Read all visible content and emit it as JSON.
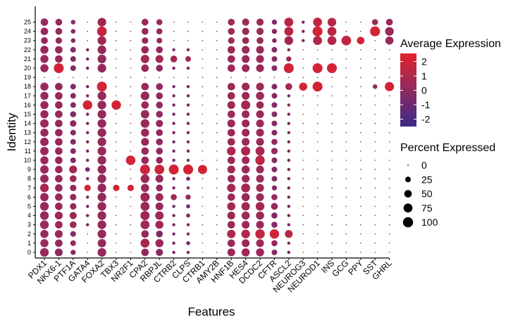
{
  "chart_data": {
    "type": "dotplot",
    "xlabel": "Features",
    "ylabel": "Identity",
    "features": [
      "PDX1",
      "NKX6-1",
      "PTF1A",
      "GATA4",
      "FOXA2",
      "TBX3",
      "NR2F1",
      "CPA2",
      "RBPJL",
      "CTRB2",
      "CLPS",
      "CTRB1",
      "AMY2B",
      "HNF1B",
      "HES4",
      "DCDC2",
      "CFTR",
      "ASCL2",
      "NEUROG3",
      "NEUROD1",
      "INS",
      "GCG",
      "PPY",
      "SST",
      "GHRL"
    ],
    "identities": [
      "0",
      "1",
      "2",
      "3",
      "4",
      "5",
      "6",
      "7",
      "8",
      "9",
      "10",
      "11",
      "12",
      "13",
      "14",
      "15",
      "16",
      "17",
      "18",
      "19",
      "20",
      "21",
      "22",
      "23",
      "24",
      "25"
    ],
    "color_legend": {
      "title": "Average Expression",
      "ticks": [
        "2",
        "1",
        "0",
        "-1",
        "-2"
      ],
      "range": [
        -2.5,
        2.5
      ],
      "low_color": "#3b2a86",
      "high_color": "#e3222c"
    },
    "size_legend": {
      "title": "Percent Expressed",
      "ticks": [
        "0",
        "25",
        "50",
        "75",
        "100"
      ]
    },
    "expression_rows": [
      [
        0.2,
        0.0,
        -0.3,
        -0.6,
        0.2,
        -0.6,
        -0.6,
        0.0,
        -0.2,
        -0.6,
        -0.6,
        -0.6,
        -0.6,
        0.4,
        0.4,
        0.4,
        -0.3,
        -0.6,
        -0.6,
        -0.6,
        -0.6,
        -0.6,
        -0.6,
        -0.6,
        -0.6
      ],
      [
        0.3,
        0.2,
        0.2,
        -0.6,
        0.3,
        -0.6,
        -0.6,
        0.7,
        0.4,
        -0.6,
        -0.6,
        -0.6,
        -0.6,
        0.4,
        0.4,
        0.4,
        0.2,
        -0.6,
        -0.6,
        -0.6,
        -0.6,
        -0.6,
        -0.6,
        -0.6,
        -0.6
      ],
      [
        0.2,
        0.3,
        -0.3,
        -0.6,
        0.2,
        -0.6,
        -0.6,
        0.2,
        -0.4,
        -0.6,
        -0.6,
        -0.6,
        -0.6,
        1.0,
        1.0,
        1.5,
        2.0,
        1.2,
        -0.6,
        -0.6,
        -0.6,
        -0.6,
        -0.6,
        -0.6,
        -0.6
      ],
      [
        0.3,
        0.4,
        0.5,
        -0.6,
        0.2,
        -0.6,
        -0.6,
        0.5,
        0.5,
        -0.6,
        -0.6,
        -0.6,
        -0.6,
        0.4,
        0.4,
        0.4,
        -0.3,
        -0.6,
        -0.6,
        -0.6,
        -0.6,
        -0.6,
        -0.6,
        -0.6,
        -0.6
      ],
      [
        0.3,
        0.4,
        0.5,
        -0.6,
        0.2,
        -0.6,
        -0.6,
        0.5,
        0.5,
        -0.6,
        -0.6,
        -0.6,
        -0.6,
        0.4,
        0.4,
        0.4,
        -0.3,
        -0.6,
        -0.6,
        -0.6,
        -0.6,
        -0.6,
        -0.6,
        -0.6,
        -0.6
      ],
      [
        0.3,
        0.3,
        0.2,
        -0.6,
        0.2,
        -0.6,
        -0.6,
        0.4,
        0.3,
        -0.6,
        -0.6,
        -0.6,
        -0.6,
        0.6,
        0.6,
        0.6,
        0.3,
        -0.6,
        -0.6,
        -0.6,
        -0.6,
        -0.6,
        -0.6,
        -0.6,
        -0.6
      ],
      [
        0.3,
        0.3,
        0.2,
        -0.6,
        0.2,
        -0.6,
        -0.6,
        0.5,
        0.5,
        0.4,
        0.2,
        -0.6,
        -0.6,
        0.4,
        0.4,
        0.4,
        0.2,
        -0.6,
        -0.6,
        -0.6,
        -0.6,
        -0.6,
        -0.6,
        -0.6,
        -0.6
      ],
      [
        0.7,
        0.3,
        0.3,
        2.0,
        0.2,
        2.0,
        2.0,
        0.3,
        0.2,
        -0.6,
        -0.6,
        -0.6,
        -0.6,
        0.7,
        0.7,
        0.5,
        -0.3,
        -0.6,
        -0.6,
        -0.6,
        -0.6,
        -0.6,
        -0.6,
        -0.6,
        -0.6
      ],
      [
        0.3,
        0.3,
        0.4,
        -0.6,
        0.2,
        -0.6,
        -0.6,
        0.4,
        0.3,
        -0.6,
        -0.6,
        -0.6,
        -0.6,
        0.4,
        0.4,
        0.4,
        -0.3,
        -0.6,
        -0.6,
        -0.6,
        -0.6,
        -0.6,
        -0.6,
        -0.6,
        -0.6
      ],
      [
        0.4,
        0.4,
        0.8,
        -0.6,
        0.2,
        -0.6,
        -0.6,
        1.8,
        1.8,
        2.0,
        2.0,
        2.0,
        -0.6,
        0.4,
        0.4,
        0.4,
        -0.3,
        -0.6,
        -0.6,
        -0.6,
        -0.6,
        -0.6,
        -0.6,
        -0.6,
        -0.6
      ],
      [
        0.3,
        0.3,
        -0.3,
        -0.6,
        0.2,
        -0.6,
        2.0,
        0.3,
        0.2,
        -0.6,
        -0.6,
        -0.6,
        -0.6,
        0.4,
        0.4,
        1.3,
        -0.3,
        -0.6,
        -0.6,
        -0.6,
        -0.6,
        -0.6,
        -0.6,
        -0.6,
        -0.6
      ],
      [
        0.3,
        0.3,
        -0.3,
        -0.6,
        0.2,
        -0.6,
        -0.6,
        0.3,
        0.2,
        -0.6,
        -0.6,
        -0.6,
        -0.6,
        0.9,
        0.9,
        0.9,
        0.2,
        -0.6,
        -0.6,
        -0.6,
        -0.6,
        -0.6,
        -0.6,
        -0.6,
        -0.6
      ],
      [
        0.3,
        0.3,
        -0.3,
        -0.6,
        0.2,
        -0.6,
        -0.6,
        0.3,
        0.2,
        -0.6,
        -0.6,
        -0.6,
        -0.6,
        0.4,
        0.4,
        0.4,
        0.2,
        -0.6,
        -0.6,
        -0.6,
        -0.6,
        -0.6,
        -0.6,
        -0.6,
        -0.6
      ],
      [
        0.3,
        0.3,
        -0.3,
        -0.6,
        0.2,
        -0.6,
        -0.6,
        0.3,
        0.2,
        -0.6,
        -0.6,
        -0.6,
        -0.6,
        0.4,
        0.4,
        0.4,
        -0.3,
        -0.6,
        -0.6,
        -0.6,
        -0.6,
        -0.6,
        -0.6,
        -0.6,
        -0.6
      ],
      [
        0.3,
        0.3,
        0.2,
        -0.6,
        0.2,
        -0.6,
        -0.6,
        0.3,
        0.2,
        -0.6,
        -0.6,
        -0.6,
        -0.6,
        0.4,
        0.4,
        0.4,
        -0.3,
        -0.6,
        -0.6,
        -0.6,
        -0.6,
        -0.6,
        -0.6,
        -0.6,
        -0.6
      ],
      [
        0.3,
        0.3,
        -0.3,
        -0.6,
        0.2,
        -0.6,
        -0.6,
        0.3,
        0.2,
        -0.6,
        -0.6,
        -0.6,
        -0.6,
        0.4,
        0.4,
        0.4,
        -0.3,
        -0.6,
        -0.6,
        -0.6,
        -0.6,
        -0.6,
        -0.6,
        -0.6,
        -0.6
      ],
      [
        0.3,
        0.3,
        -0.3,
        2.0,
        0.2,
        2.0,
        -0.6,
        0.3,
        0.2,
        -0.6,
        -0.6,
        -0.6,
        -0.6,
        0.4,
        0.7,
        0.4,
        -0.3,
        -0.6,
        -0.6,
        -0.6,
        -0.6,
        -0.6,
        -0.6,
        -0.6,
        -0.6
      ],
      [
        0.3,
        0.3,
        -0.3,
        -0.6,
        0.2,
        -0.6,
        -0.6,
        0.3,
        0.2,
        -0.6,
        -0.6,
        -0.6,
        -0.6,
        0.4,
        0.4,
        0.4,
        -0.3,
        -0.6,
        -0.6,
        -0.6,
        -0.6,
        -0.6,
        -0.6,
        -0.6,
        -0.6
      ],
      [
        0.3,
        0.3,
        -0.3,
        -0.6,
        2.0,
        -0.6,
        -0.6,
        0.3,
        0.2,
        -0.6,
        -0.6,
        -0.6,
        -0.6,
        0.4,
        0.4,
        0.4,
        -0.3,
        0.6,
        2.0,
        2.0,
        -0.6,
        -0.6,
        -0.6,
        0.3,
        2.0
      ],
      [
        -0.6,
        -0.6,
        -0.6,
        -0.6,
        -0.6,
        -0.6,
        -0.6,
        -0.6,
        -0.6,
        -0.6,
        -0.6,
        -0.6,
        -0.6,
        -0.6,
        -0.6,
        -0.6,
        -0.6,
        -0.6,
        -0.6,
        -0.6,
        -0.6,
        -0.6,
        -0.6,
        -0.6,
        -0.6
      ],
      [
        0.3,
        2.0,
        -0.3,
        -0.6,
        0.2,
        -0.6,
        -0.6,
        0.3,
        0.2,
        -0.6,
        -0.6,
        -0.6,
        -0.6,
        0.4,
        0.4,
        0.4,
        -0.3,
        2.0,
        -0.6,
        2.0,
        2.0,
        -0.6,
        -0.6,
        -0.6,
        -0.6
      ],
      [
        0.3,
        0.3,
        -0.3,
        -0.6,
        0.2,
        -0.6,
        -0.6,
        0.7,
        0.7,
        0.7,
        0.4,
        -0.6,
        -0.6,
        0.4,
        0.4,
        0.4,
        -0.3,
        0.3,
        -0.6,
        -0.6,
        -0.6,
        -0.6,
        -0.6,
        -0.6,
        -0.6
      ],
      [
        0.3,
        0.3,
        -0.3,
        -0.6,
        0.2,
        -0.6,
        -0.6,
        0.3,
        0.2,
        -0.6,
        -0.6,
        -0.6,
        -0.6,
        0.4,
        0.4,
        0.4,
        -0.3,
        -0.6,
        -0.6,
        -0.6,
        -0.6,
        -0.6,
        -0.6,
        -0.6,
        -0.6
      ],
      [
        0.3,
        0.3,
        -0.3,
        -0.6,
        0.6,
        -0.6,
        -0.6,
        0.3,
        0.2,
        -0.6,
        -0.6,
        -0.6,
        -0.6,
        0.4,
        0.4,
        0.4,
        -0.3,
        0.5,
        -0.6,
        1.0,
        1.0,
        1.5,
        2.0,
        -0.6,
        0.3
      ],
      [
        0.3,
        0.3,
        -0.3,
        -0.6,
        1.6,
        -0.6,
        -0.6,
        0.3,
        0.2,
        -0.6,
        -0.6,
        -0.6,
        -0.6,
        0.4,
        0.4,
        0.4,
        -0.3,
        1.2,
        -0.6,
        2.0,
        1.2,
        -0.6,
        -0.6,
        2.0,
        0.3
      ],
      [
        0.3,
        0.3,
        -0.3,
        -0.6,
        0.5,
        -0.6,
        -0.6,
        0.3,
        0.2,
        -0.6,
        -0.6,
        -0.6,
        -0.6,
        0.4,
        0.4,
        0.4,
        -0.3,
        1.2,
        -0.6,
        1.5,
        1.2,
        -0.6,
        -0.6,
        0.3,
        0.3
      ]
    ],
    "percent_rows": [
      [
        70,
        55,
        20,
        2,
        70,
        2,
        2,
        50,
        45,
        5,
        5,
        2,
        2,
        55,
        60,
        60,
        25,
        5,
        2,
        2,
        2,
        2,
        2,
        2,
        2
      ],
      [
        60,
        50,
        25,
        2,
        65,
        2,
        2,
        75,
        60,
        5,
        10,
        2,
        2,
        50,
        55,
        55,
        30,
        5,
        2,
        2,
        2,
        2,
        2,
        2,
        2
      ],
      [
        60,
        55,
        25,
        2,
        70,
        2,
        2,
        50,
        40,
        5,
        5,
        2,
        2,
        65,
        70,
        85,
        85,
        55,
        2,
        2,
        2,
        2,
        2,
        2,
        2
      ],
      [
        70,
        50,
        40,
        5,
        70,
        2,
        2,
        75,
        60,
        5,
        5,
        2,
        2,
        50,
        55,
        55,
        30,
        5,
        2,
        2,
        2,
        2,
        2,
        2,
        2
      ],
      [
        70,
        55,
        45,
        5,
        70,
        2,
        2,
        80,
        65,
        5,
        10,
        2,
        2,
        55,
        60,
        60,
        30,
        5,
        2,
        2,
        2,
        2,
        2,
        2,
        2
      ],
      [
        70,
        50,
        35,
        5,
        70,
        2,
        2,
        75,
        55,
        5,
        10,
        2,
        2,
        60,
        65,
        70,
        40,
        5,
        2,
        2,
        2,
        2,
        2,
        2,
        2
      ],
      [
        65,
        50,
        35,
        5,
        70,
        2,
        2,
        80,
        55,
        30,
        20,
        2,
        2,
        50,
        60,
        55,
        30,
        5,
        2,
        2,
        2,
        2,
        2,
        2,
        2
      ],
      [
        70,
        50,
        35,
        35,
        70,
        35,
        35,
        60,
        40,
        5,
        5,
        2,
        2,
        65,
        75,
        55,
        20,
        5,
        2,
        2,
        2,
        2,
        2,
        2,
        2
      ],
      [
        65,
        50,
        40,
        5,
        70,
        2,
        2,
        70,
        55,
        5,
        10,
        2,
        2,
        50,
        55,
        55,
        25,
        5,
        2,
        2,
        2,
        2,
        2,
        2,
        2
      ],
      [
        65,
        50,
        55,
        15,
        70,
        2,
        2,
        95,
        90,
        95,
        95,
        80,
        2,
        55,
        60,
        55,
        25,
        5,
        2,
        2,
        2,
        2,
        2,
        2,
        2
      ],
      [
        60,
        50,
        25,
        5,
        70,
        2,
        85,
        50,
        40,
        5,
        5,
        2,
        2,
        50,
        55,
        85,
        25,
        5,
        2,
        2,
        2,
        2,
        2,
        2,
        2
      ],
      [
        65,
        50,
        25,
        5,
        70,
        2,
        2,
        50,
        40,
        5,
        5,
        2,
        2,
        70,
        80,
        75,
        35,
        5,
        2,
        2,
        2,
        2,
        2,
        2,
        2
      ],
      [
        65,
        50,
        25,
        5,
        70,
        2,
        2,
        55,
        40,
        5,
        5,
        2,
        2,
        50,
        55,
        55,
        30,
        5,
        2,
        2,
        2,
        2,
        2,
        2,
        2
      ],
      [
        60,
        50,
        25,
        5,
        70,
        2,
        2,
        60,
        40,
        5,
        5,
        2,
        2,
        50,
        55,
        55,
        25,
        5,
        2,
        2,
        2,
        2,
        2,
        2,
        2
      ],
      [
        65,
        50,
        35,
        5,
        70,
        2,
        2,
        70,
        45,
        5,
        5,
        2,
        2,
        55,
        55,
        55,
        25,
        5,
        2,
        2,
        2,
        2,
        2,
        2,
        2
      ],
      [
        60,
        50,
        30,
        5,
        70,
        2,
        2,
        65,
        40,
        5,
        5,
        2,
        2,
        50,
        55,
        55,
        25,
        5,
        2,
        2,
        2,
        2,
        2,
        2,
        2
      ],
      [
        60,
        50,
        25,
        85,
        70,
        85,
        2,
        50,
        40,
        5,
        5,
        2,
        2,
        55,
        80,
        50,
        25,
        5,
        2,
        2,
        2,
        2,
        2,
        2,
        2
      ],
      [
        60,
        50,
        25,
        5,
        70,
        2,
        2,
        70,
        40,
        5,
        5,
        2,
        2,
        50,
        55,
        60,
        25,
        5,
        2,
        2,
        2,
        2,
        2,
        2,
        2
      ],
      [
        60,
        50,
        25,
        5,
        95,
        2,
        2,
        50,
        40,
        5,
        5,
        2,
        2,
        50,
        55,
        55,
        25,
        40,
        60,
        95,
        2,
        2,
        2,
        15,
        80
      ],
      [
        2,
        2,
        2,
        2,
        2,
        2,
        2,
        2,
        2,
        2,
        2,
        2,
        2,
        2,
        2,
        2,
        2,
        2,
        2,
        2,
        2,
        2,
        2,
        2,
        2
      ],
      [
        60,
        95,
        25,
        5,
        70,
        2,
        2,
        50,
        40,
        5,
        5,
        2,
        2,
        50,
        55,
        55,
        25,
        95,
        2,
        95,
        95,
        2,
        2,
        2,
        2
      ],
      [
        60,
        50,
        25,
        5,
        70,
        2,
        2,
        65,
        55,
        40,
        25,
        2,
        2,
        50,
        55,
        55,
        25,
        20,
        2,
        2,
        2,
        2,
        2,
        2,
        2
      ],
      [
        60,
        50,
        25,
        5,
        70,
        2,
        2,
        50,
        40,
        5,
        5,
        2,
        2,
        50,
        55,
        55,
        25,
        5,
        2,
        2,
        2,
        2,
        2,
        2,
        2
      ],
      [
        40,
        35,
        15,
        2,
        70,
        2,
        2,
        35,
        25,
        2,
        2,
        2,
        2,
        35,
        40,
        40,
        15,
        70,
        5,
        75,
        75,
        90,
        50,
        2,
        60
      ],
      [
        50,
        40,
        15,
        2,
        90,
        2,
        2,
        40,
        30,
        2,
        2,
        2,
        2,
        40,
        45,
        45,
        20,
        75,
        5,
        95,
        75,
        2,
        2,
        95,
        70
      ],
      [
        50,
        40,
        15,
        2,
        70,
        2,
        2,
        40,
        30,
        2,
        2,
        2,
        2,
        40,
        45,
        45,
        20,
        75,
        5,
        75,
        70,
        2,
        2,
        30,
        40
      ]
    ]
  }
}
